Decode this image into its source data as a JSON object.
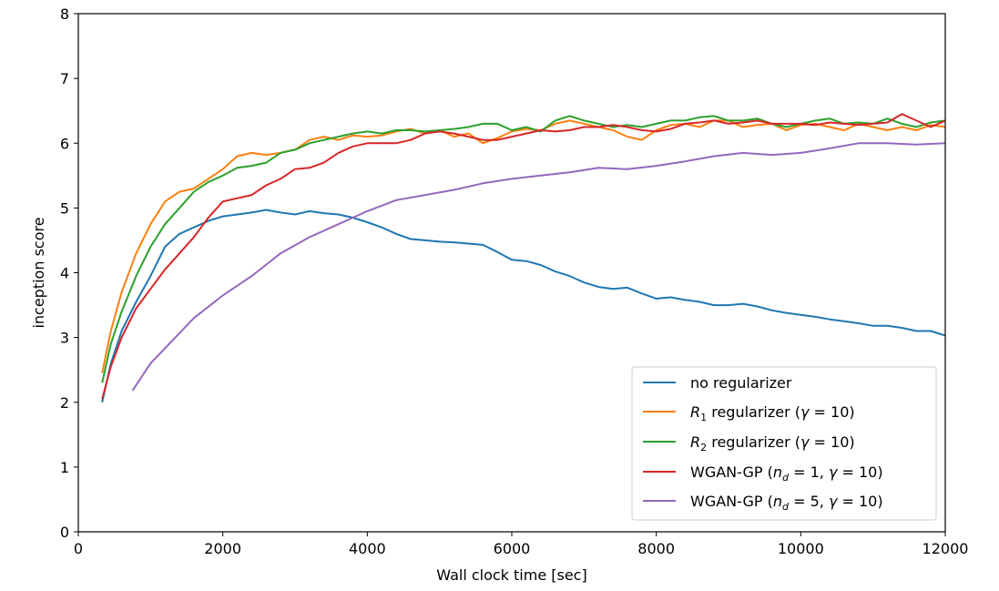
{
  "chart_data": {
    "type": "line",
    "xlabel": "Wall clock time [sec]",
    "ylabel": "inception score",
    "xlim": [
      0,
      12000
    ],
    "ylim": [
      0,
      8
    ],
    "xticks": [
      0,
      2000,
      4000,
      6000,
      8000,
      10000,
      12000
    ],
    "yticks": [
      0,
      1,
      2,
      3,
      4,
      5,
      6,
      7,
      8
    ],
    "grid": false,
    "legend_position": "lower-right",
    "series": [
      {
        "name": "no regularizer",
        "color": "#1f77b4",
        "points": [
          [
            330,
            2.0
          ],
          [
            450,
            2.6
          ],
          [
            600,
            3.1
          ],
          [
            800,
            3.55
          ],
          [
            1000,
            3.95
          ],
          [
            1200,
            4.4
          ],
          [
            1400,
            4.6
          ],
          [
            1600,
            4.7
          ],
          [
            1800,
            4.8
          ],
          [
            2000,
            4.87
          ],
          [
            2200,
            4.9
          ],
          [
            2400,
            4.93
          ],
          [
            2600,
            4.97
          ],
          [
            2800,
            4.93
          ],
          [
            3000,
            4.9
          ],
          [
            3200,
            4.95
          ],
          [
            3400,
            4.92
          ],
          [
            3600,
            4.9
          ],
          [
            3800,
            4.85
          ],
          [
            4000,
            4.78
          ],
          [
            4200,
            4.7
          ],
          [
            4400,
            4.6
          ],
          [
            4600,
            4.52
          ],
          [
            4800,
            4.5
          ],
          [
            5000,
            4.48
          ],
          [
            5200,
            4.47
          ],
          [
            5400,
            4.45
          ],
          [
            5600,
            4.43
          ],
          [
            5800,
            4.32
          ],
          [
            6000,
            4.2
          ],
          [
            6200,
            4.18
          ],
          [
            6400,
            4.12
          ],
          [
            6600,
            4.02
          ],
          [
            6800,
            3.95
          ],
          [
            7000,
            3.85
          ],
          [
            7200,
            3.78
          ],
          [
            7400,
            3.75
          ],
          [
            7600,
            3.77
          ],
          [
            7800,
            3.68
          ],
          [
            8000,
            3.6
          ],
          [
            8200,
            3.62
          ],
          [
            8400,
            3.58
          ],
          [
            8600,
            3.55
          ],
          [
            8800,
            3.5
          ],
          [
            9000,
            3.5
          ],
          [
            9200,
            3.52
          ],
          [
            9400,
            3.48
          ],
          [
            9600,
            3.42
          ],
          [
            9800,
            3.38
          ],
          [
            10000,
            3.35
          ],
          [
            10200,
            3.32
          ],
          [
            10400,
            3.28
          ],
          [
            10600,
            3.25
          ],
          [
            10800,
            3.22
          ],
          [
            11000,
            3.18
          ],
          [
            11200,
            3.18
          ],
          [
            11400,
            3.15
          ],
          [
            11600,
            3.1
          ],
          [
            11800,
            3.1
          ],
          [
            12000,
            3.03
          ]
        ]
      },
      {
        "name": "R1 regularizer (γ = 10)",
        "color": "#ff7f0e",
        "points": [
          [
            330,
            2.45
          ],
          [
            450,
            3.1
          ],
          [
            600,
            3.7
          ],
          [
            800,
            4.3
          ],
          [
            1000,
            4.75
          ],
          [
            1200,
            5.1
          ],
          [
            1400,
            5.25
          ],
          [
            1600,
            5.3
          ],
          [
            1800,
            5.45
          ],
          [
            2000,
            5.6
          ],
          [
            2200,
            5.8
          ],
          [
            2400,
            5.85
          ],
          [
            2600,
            5.82
          ],
          [
            2800,
            5.85
          ],
          [
            3000,
            5.9
          ],
          [
            3200,
            6.05
          ],
          [
            3400,
            6.1
          ],
          [
            3600,
            6.05
          ],
          [
            3800,
            6.12
          ],
          [
            4000,
            6.1
          ],
          [
            4200,
            6.12
          ],
          [
            4400,
            6.18
          ],
          [
            4600,
            6.22
          ],
          [
            4800,
            6.15
          ],
          [
            5000,
            6.2
          ],
          [
            5200,
            6.1
          ],
          [
            5400,
            6.15
          ],
          [
            5600,
            6.0
          ],
          [
            5800,
            6.08
          ],
          [
            6000,
            6.18
          ],
          [
            6200,
            6.22
          ],
          [
            6400,
            6.2
          ],
          [
            6600,
            6.3
          ],
          [
            6800,
            6.35
          ],
          [
            7000,
            6.3
          ],
          [
            7200,
            6.25
          ],
          [
            7400,
            6.2
          ],
          [
            7600,
            6.1
          ],
          [
            7800,
            6.05
          ],
          [
            8000,
            6.2
          ],
          [
            8200,
            6.28
          ],
          [
            8400,
            6.3
          ],
          [
            8600,
            6.25
          ],
          [
            8800,
            6.35
          ],
          [
            9000,
            6.35
          ],
          [
            9200,
            6.25
          ],
          [
            9400,
            6.28
          ],
          [
            9600,
            6.3
          ],
          [
            9800,
            6.2
          ],
          [
            10000,
            6.28
          ],
          [
            10200,
            6.3
          ],
          [
            10400,
            6.25
          ],
          [
            10600,
            6.2
          ],
          [
            10800,
            6.3
          ],
          [
            11000,
            6.25
          ],
          [
            11200,
            6.2
          ],
          [
            11400,
            6.25
          ],
          [
            11600,
            6.2
          ],
          [
            11800,
            6.28
          ],
          [
            12000,
            6.25
          ]
        ]
      },
      {
        "name": "R2 regularizer (γ = 10)",
        "color": "#2ca02c",
        "points": [
          [
            330,
            2.3
          ],
          [
            450,
            2.9
          ],
          [
            600,
            3.4
          ],
          [
            800,
            3.95
          ],
          [
            1000,
            4.4
          ],
          [
            1200,
            4.75
          ],
          [
            1400,
            5.0
          ],
          [
            1600,
            5.25
          ],
          [
            1800,
            5.4
          ],
          [
            2000,
            5.5
          ],
          [
            2200,
            5.62
          ],
          [
            2400,
            5.65
          ],
          [
            2600,
            5.7
          ],
          [
            2800,
            5.85
          ],
          [
            3000,
            5.9
          ],
          [
            3200,
            6.0
          ],
          [
            3400,
            6.05
          ],
          [
            3600,
            6.1
          ],
          [
            3800,
            6.15
          ],
          [
            4000,
            6.18
          ],
          [
            4200,
            6.15
          ],
          [
            4400,
            6.2
          ],
          [
            4600,
            6.2
          ],
          [
            4800,
            6.18
          ],
          [
            5000,
            6.2
          ],
          [
            5200,
            6.22
          ],
          [
            5400,
            6.25
          ],
          [
            5600,
            6.3
          ],
          [
            5800,
            6.3
          ],
          [
            6000,
            6.2
          ],
          [
            6200,
            6.25
          ],
          [
            6400,
            6.18
          ],
          [
            6600,
            6.35
          ],
          [
            6800,
            6.42
          ],
          [
            7000,
            6.35
          ],
          [
            7200,
            6.3
          ],
          [
            7400,
            6.25
          ],
          [
            7600,
            6.28
          ],
          [
            7800,
            6.25
          ],
          [
            8000,
            6.3
          ],
          [
            8200,
            6.35
          ],
          [
            8400,
            6.35
          ],
          [
            8600,
            6.4
          ],
          [
            8800,
            6.42
          ],
          [
            9000,
            6.35
          ],
          [
            9200,
            6.35
          ],
          [
            9400,
            6.38
          ],
          [
            9600,
            6.3
          ],
          [
            9800,
            6.25
          ],
          [
            10000,
            6.3
          ],
          [
            10200,
            6.35
          ],
          [
            10400,
            6.38
          ],
          [
            10600,
            6.3
          ],
          [
            10800,
            6.32
          ],
          [
            11000,
            6.3
          ],
          [
            11200,
            6.38
          ],
          [
            11400,
            6.3
          ],
          [
            11600,
            6.25
          ],
          [
            11800,
            6.32
          ],
          [
            12000,
            6.35
          ]
        ]
      },
      {
        "name": "WGAN-GP (nd = 1, γ = 10)",
        "color": "#d62728",
        "points": [
          [
            330,
            2.05
          ],
          [
            450,
            2.55
          ],
          [
            600,
            3.0
          ],
          [
            800,
            3.45
          ],
          [
            1000,
            3.75
          ],
          [
            1200,
            4.05
          ],
          [
            1400,
            4.3
          ],
          [
            1600,
            4.55
          ],
          [
            1800,
            4.85
          ],
          [
            2000,
            5.1
          ],
          [
            2200,
            5.15
          ],
          [
            2400,
            5.2
          ],
          [
            2600,
            5.35
          ],
          [
            2800,
            5.45
          ],
          [
            3000,
            5.6
          ],
          [
            3200,
            5.62
          ],
          [
            3400,
            5.7
          ],
          [
            3600,
            5.85
          ],
          [
            3800,
            5.95
          ],
          [
            4000,
            6.0
          ],
          [
            4200,
            6.0
          ],
          [
            4400,
            6.0
          ],
          [
            4600,
            6.05
          ],
          [
            4800,
            6.15
          ],
          [
            5000,
            6.18
          ],
          [
            5200,
            6.15
          ],
          [
            5400,
            6.1
          ],
          [
            5600,
            6.05
          ],
          [
            5800,
            6.05
          ],
          [
            6000,
            6.1
          ],
          [
            6200,
            6.15
          ],
          [
            6400,
            6.2
          ],
          [
            6600,
            6.18
          ],
          [
            6800,
            6.2
          ],
          [
            7000,
            6.25
          ],
          [
            7200,
            6.25
          ],
          [
            7400,
            6.28
          ],
          [
            7600,
            6.25
          ],
          [
            7800,
            6.2
          ],
          [
            8000,
            6.18
          ],
          [
            8200,
            6.22
          ],
          [
            8400,
            6.3
          ],
          [
            8600,
            6.32
          ],
          [
            8800,
            6.35
          ],
          [
            9000,
            6.3
          ],
          [
            9200,
            6.32
          ],
          [
            9400,
            6.35
          ],
          [
            9600,
            6.3
          ],
          [
            9800,
            6.3
          ],
          [
            10000,
            6.3
          ],
          [
            10200,
            6.28
          ],
          [
            10400,
            6.32
          ],
          [
            10600,
            6.3
          ],
          [
            10800,
            6.28
          ],
          [
            11000,
            6.3
          ],
          [
            11200,
            6.32
          ],
          [
            11400,
            6.45
          ],
          [
            11600,
            6.35
          ],
          [
            11800,
            6.25
          ],
          [
            12000,
            6.35
          ]
        ]
      },
      {
        "name": "WGAN-GP (nd = 5, γ = 10)",
        "color": "#9467bd",
        "points": [
          [
            750,
            2.18
          ],
          [
            1000,
            2.6
          ],
          [
            1300,
            2.95
          ],
          [
            1600,
            3.3
          ],
          [
            2000,
            3.65
          ],
          [
            2400,
            3.95
          ],
          [
            2800,
            4.3
          ],
          [
            3200,
            4.55
          ],
          [
            3600,
            4.75
          ],
          [
            4000,
            4.95
          ],
          [
            4400,
            5.12
          ],
          [
            4800,
            5.2
          ],
          [
            5200,
            5.28
          ],
          [
            5600,
            5.38
          ],
          [
            6000,
            5.45
          ],
          [
            6400,
            5.5
          ],
          [
            6800,
            5.55
          ],
          [
            7200,
            5.62
          ],
          [
            7600,
            5.6
          ],
          [
            8000,
            5.65
          ],
          [
            8400,
            5.72
          ],
          [
            8800,
            5.8
          ],
          [
            9200,
            5.85
          ],
          [
            9600,
            5.82
          ],
          [
            10000,
            5.85
          ],
          [
            10400,
            5.92
          ],
          [
            10800,
            6.0
          ],
          [
            11200,
            6.0
          ],
          [
            11600,
            5.98
          ],
          [
            12000,
            6.0
          ]
        ]
      }
    ]
  }
}
